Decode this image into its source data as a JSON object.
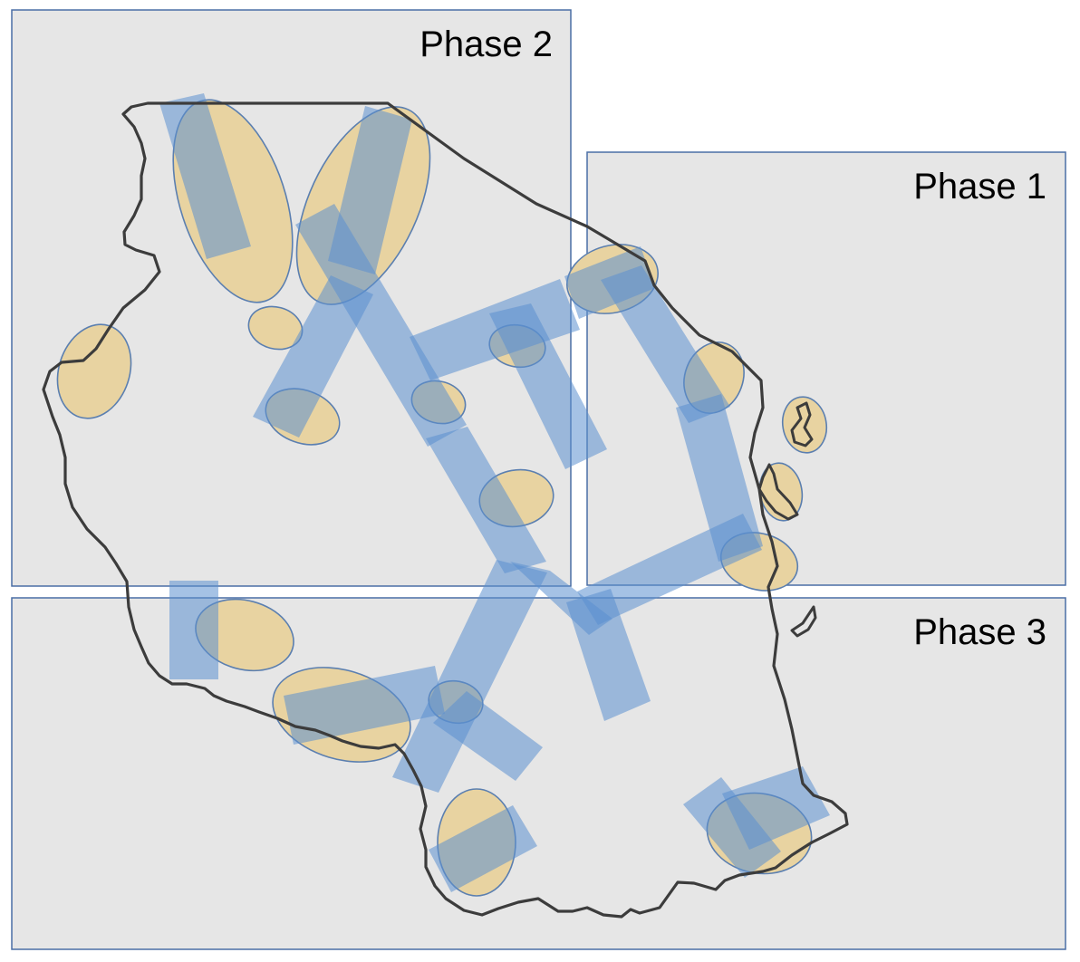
{
  "colors": {
    "phase_box_fill": "#e6e6e6",
    "phase_box_stroke": "#4a6fa5",
    "zone_fill": "#e8d3a1",
    "zone_stroke": "#5b7fb0",
    "corridor_fill": "#5b8fd0",
    "border": "#3c3c3c"
  },
  "phases": [
    {
      "id": "phase-2",
      "label": "Phase 2"
    },
    {
      "id": "phase-1",
      "label": "Phase 1"
    },
    {
      "id": "phase-3",
      "label": "Phase 3"
    }
  ]
}
